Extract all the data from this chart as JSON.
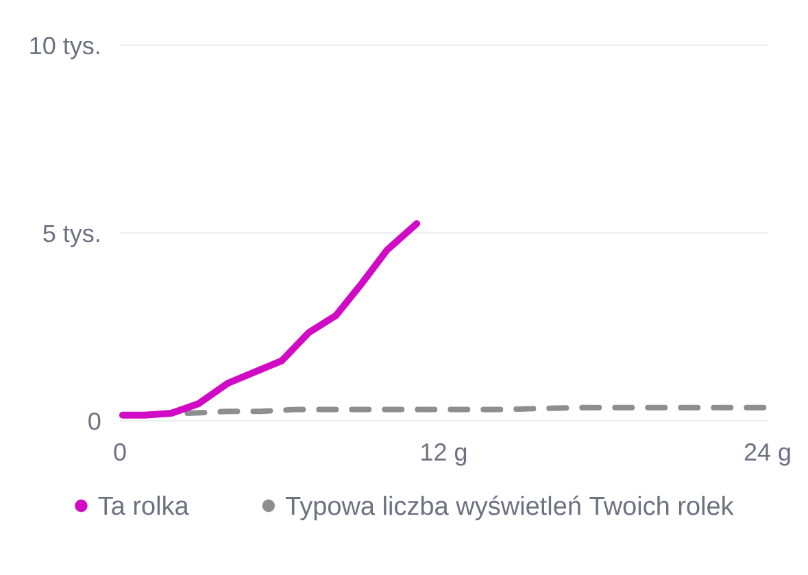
{
  "chart_data": {
    "type": "line",
    "xlim": [
      0,
      24
    ],
    "xticks": [
      0,
      {
        "value": 12,
        "label": "12 g"
      },
      {
        "value": 24,
        "label": "24 g"
      }
    ],
    "ylim": [
      0,
      10
    ],
    "yticks": [
      0,
      {
        "value": 5,
        "label": "5 tys."
      },
      {
        "value": 10,
        "label": "10 tys."
      }
    ],
    "grid": "y",
    "legend": "bottom",
    "series": [
      {
        "name": "Ta rolka",
        "color": "#d10ac6",
        "line_style": "solid",
        "x": [
          0.1,
          0.9,
          1.9,
          2.9,
          4,
          6,
          7,
          8,
          8.9,
          9.9,
          11
        ],
        "values": [
          0.15,
          0.15,
          0.2,
          0.45,
          1.0,
          1.6,
          2.35,
          2.8,
          3.6,
          4.55,
          5.25
        ]
      },
      {
        "name": "Typowa liczba wyświetleń Twoich rolek",
        "color": "#8e8e8e",
        "line_style": "dashed",
        "x": [
          2.5,
          4,
          5.2,
          6.5,
          7.7,
          8.9,
          10.1,
          11.3,
          14,
          17,
          20,
          24
        ],
        "values": [
          0.2,
          0.25,
          0.25,
          0.3,
          0.3,
          0.3,
          0.3,
          0.3,
          0.3,
          0.35,
          0.35,
          0.35
        ]
      }
    ]
  }
}
